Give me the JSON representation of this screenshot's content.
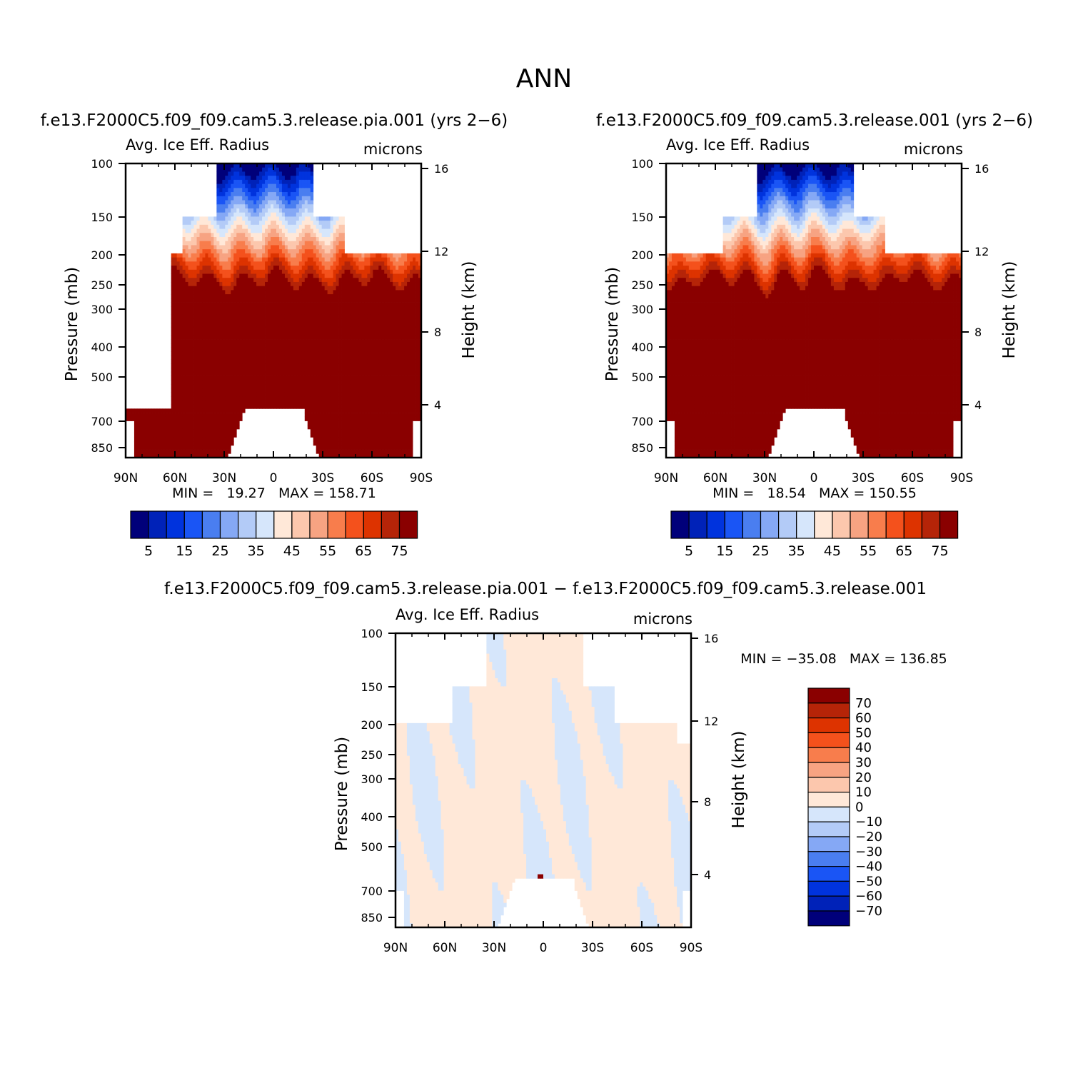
{
  "main_title": "ANN",
  "panels": [
    {
      "case_title": "f.e13.F2000C5.f09_f09.cam5.3.release.pia.001 (yrs 2−6)",
      "left_string": "Avg. Ice Eff. Radius",
      "right_string": "microns",
      "min_max": "MIN =   19.27   MAX = 158.71"
    },
    {
      "case_title": "f.e13.F2000C5.f09_f09.cam5.3.release.001 (yrs 2−6)",
      "left_string": "Avg. Ice Eff. Radius",
      "right_string": "microns",
      "min_max": "MIN =   18.54   MAX = 150.55"
    },
    {
      "case_title": "f.e13.F2000C5.f09_f09.cam5.3.release.pia.001 − f.e13.F2000C5.f09_f09.cam5.3.release.001",
      "left_string": "Avg. Ice Eff. Radius",
      "right_string": "microns",
      "min_max": "MIN = −35.08   MAX = 136.85"
    }
  ],
  "axes": {
    "x_ticks": [
      "90N",
      "60N",
      "30N",
      "0",
      "30S",
      "60S",
      "90S"
    ],
    "y_left_label": "Pressure (mb)",
    "y_left_ticks": [
      100,
      150,
      200,
      250,
      300,
      400,
      500,
      700,
      850
    ],
    "y_right_label": "Height (km)",
    "y_right_ticks": [
      16,
      12,
      8,
      4
    ]
  },
  "colorbars": {
    "field": {
      "labels": [
        "5",
        "15",
        "25",
        "35",
        "45",
        "55",
        "65",
        "75"
      ],
      "colors": [
        "#00007a",
        "#0022b8",
        "#0033dd",
        "#1a55f5",
        "#4a7ef0",
        "#85a8f5",
        "#b3cbf7",
        "#d6e6fb",
        "#ffe8d8",
        "#fcc7ad",
        "#f7a382",
        "#f87d4c",
        "#f4511c",
        "#dd3300",
        "#b52408",
        "#8a0000"
      ]
    },
    "difference": {
      "labels": [
        "70",
        "60",
        "50",
        "40",
        "30",
        "20",
        "10",
        "0",
        "−10",
        "−20",
        "−30",
        "−40",
        "−50",
        "−60",
        "−70"
      ],
      "colors": [
        "#8a0000",
        "#b52408",
        "#dd3300",
        "#f4511c",
        "#f87d4c",
        "#f7a382",
        "#fcc7ad",
        "#ffe8d8",
        "#d6e6fb",
        "#b3cbf7",
        "#85a8f5",
        "#4a7ef0",
        "#1a55f5",
        "#0033dd",
        "#0022b8",
        "#00007a"
      ]
    }
  },
  "chart_data": [
    {
      "type": "heatmap",
      "title": "f.e13.F2000C5.f09_f09.cam5.3.release.pia.001 (yrs 2−6)",
      "variable": "Avg. Ice Eff. Radius",
      "units": "microns",
      "xlabel": "",
      "ylabel": "Pressure (mb)",
      "y2label": "Height (km)",
      "min": 19.27,
      "max": 158.71,
      "levels": [
        5,
        10,
        15,
        20,
        25,
        30,
        35,
        40,
        45,
        50,
        55,
        60,
        65,
        70,
        75
      ],
      "x": [
        "90N",
        "60N",
        "30N",
        "0",
        "30S",
        "60S",
        "90S"
      ],
      "y": [
        100,
        150,
        200,
        250,
        300,
        400,
        500,
        700,
        850
      ]
    },
    {
      "type": "heatmap",
      "title": "f.e13.F2000C5.f09_f09.cam5.3.release.001 (yrs 2−6)",
      "variable": "Avg. Ice Eff. Radius",
      "units": "microns",
      "xlabel": "",
      "ylabel": "Pressure (mb)",
      "y2label": "Height (km)",
      "min": 18.54,
      "max": 150.55,
      "levels": [
        5,
        10,
        15,
        20,
        25,
        30,
        35,
        40,
        45,
        50,
        55,
        60,
        65,
        70,
        75
      ],
      "x": [
        "90N",
        "60N",
        "30N",
        "0",
        "30S",
        "60S",
        "90S"
      ],
      "y": [
        100,
        150,
        200,
        250,
        300,
        400,
        500,
        700,
        850
      ]
    },
    {
      "type": "heatmap",
      "title": "f.e13.F2000C5.f09_f09.cam5.3.release.pia.001 − f.e13.F2000C5.f09_f09.cam5.3.release.001",
      "variable": "Avg. Ice Eff. Radius",
      "units": "microns",
      "xlabel": "",
      "ylabel": "Pressure (mb)",
      "y2label": "Height (km)",
      "min": -35.08,
      "max": 136.85,
      "levels": [
        -70,
        -60,
        -50,
        -40,
        -30,
        -20,
        -10,
        0,
        10,
        20,
        30,
        40,
        50,
        60,
        70
      ],
      "x": [
        "90N",
        "60N",
        "30N",
        "0",
        "30S",
        "60S",
        "90S"
      ],
      "y": [
        100,
        150,
        200,
        250,
        300,
        400,
        500,
        700,
        850
      ]
    }
  ]
}
